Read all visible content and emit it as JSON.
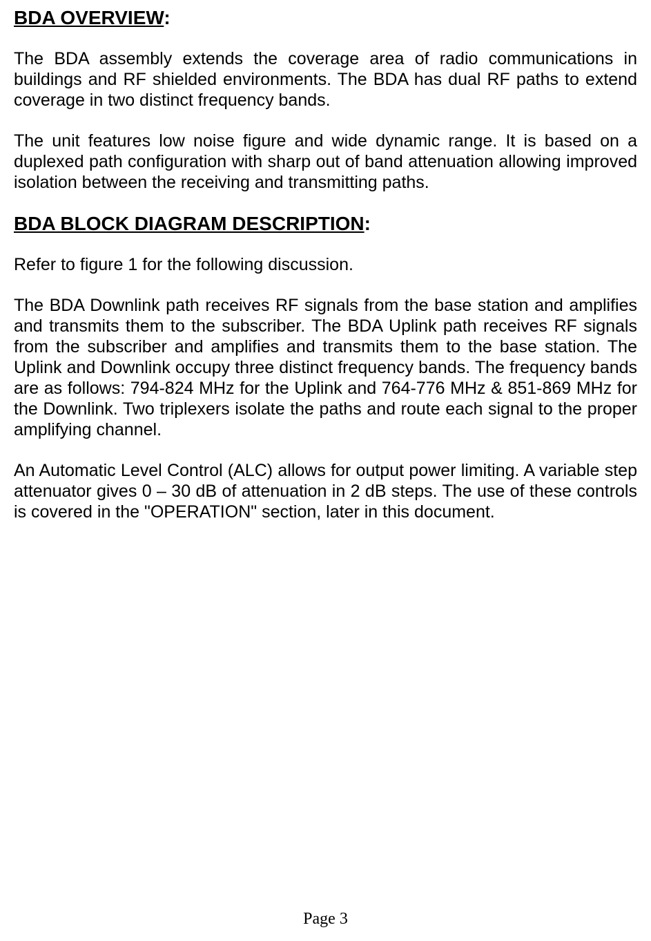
{
  "document": {
    "heading1": "BDA OVERVIEW",
    "colon1": ":",
    "paragraph1": "The BDA assembly extends the coverage area of radio communications in buildings and RF shielded environments. The BDA has dual RF paths to extend coverage in two distinct frequency bands.",
    "paragraph2": "The unit features low noise figure and wide dynamic range. It is based on a duplexed path configuration with sharp out of band attenuation allowing improved isolation between the receiving and transmitting paths.",
    "heading2": "BDA BLOCK DIAGRAM DESCRIPTION",
    "colon2": ":",
    "paragraph3": "Refer to figure 1 for the following discussion.",
    "paragraph4": "The BDA Downlink path receives RF signals from the base station and amplifies and transmits them to the subscriber. The BDA Uplink path receives RF signals from the subscriber and amplifies and transmits them to the base station. The Uplink and Downlink occupy three distinct frequency bands. The frequency bands are as follows: 794-824 MHz for the Uplink and 764-776 MHz & 851-869 MHz for the Downlink. Two triplexers isolate the paths and route each signal to the proper amplifying channel.",
    "paragraph5": "An Automatic Level Control (ALC) allows for output power limiting. A variable step attenuator gives 0 – 30 dB of attenuation in 2 dB steps. The use of these controls is covered in the \"OPERATION\" section, later in this document.",
    "footer": "Page 3"
  },
  "styles": {
    "background_color": "#ffffff",
    "text_color": "#000000",
    "heading_fontsize": 28,
    "body_fontsize": 25,
    "footer_fontsize": 24,
    "font_family": "Arial",
    "footer_font_family": "Times New Roman"
  }
}
